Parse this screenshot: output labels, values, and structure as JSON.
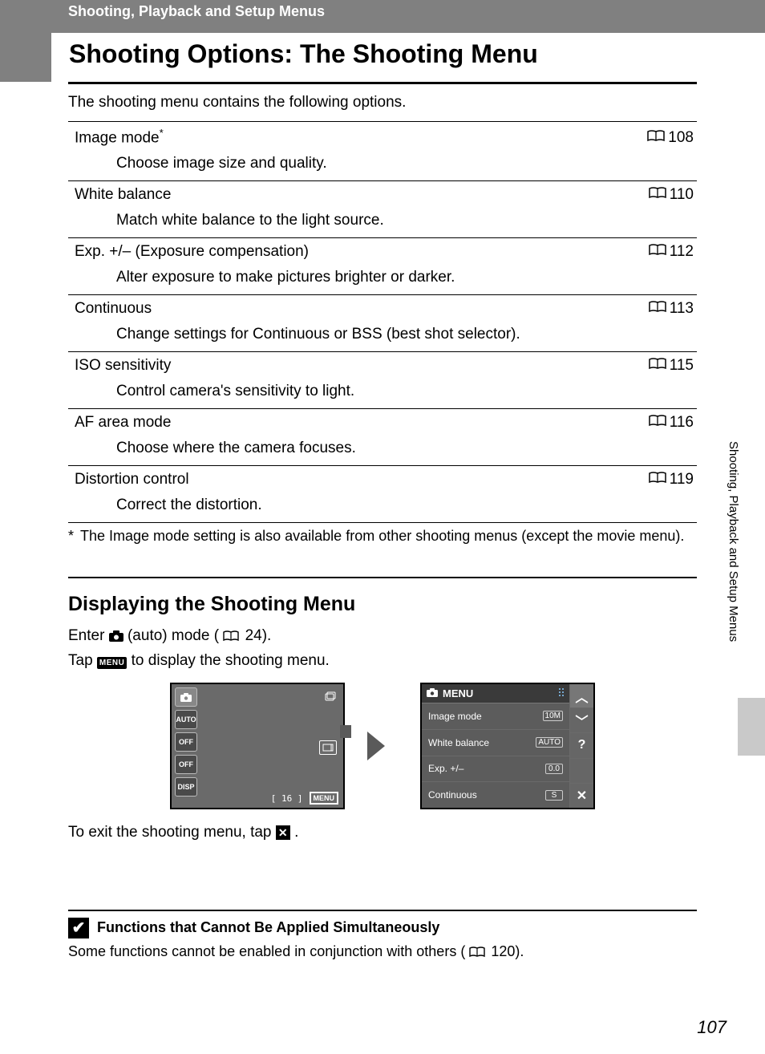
{
  "header": {
    "breadcrumb": "Shooting, Playback and Setup Menus",
    "title": "Shooting Options: The Shooting Menu"
  },
  "intro": "The shooting menu contains the following options.",
  "options": [
    {
      "name": "Image mode",
      "sup": "*",
      "page": "108",
      "desc": "Choose image size and quality."
    },
    {
      "name": "White balance",
      "sup": "",
      "page": "110",
      "desc": "Match white balance to the light source."
    },
    {
      "name": "Exp. +/– (Exposure compensation)",
      "sup": "",
      "page": "112",
      "desc": "Alter exposure to make pictures brighter or darker."
    },
    {
      "name": "Continuous",
      "sup": "",
      "page": "113",
      "desc": "Change settings for Continuous or BSS (best shot selector)."
    },
    {
      "name": "ISO sensitivity",
      "sup": "",
      "page": "115",
      "desc": "Control camera's sensitivity to light."
    },
    {
      "name": "AF area mode",
      "sup": "",
      "page": "116",
      "desc": "Choose where the camera focuses."
    },
    {
      "name": "Distortion control",
      "sup": "",
      "page": "119",
      "desc": "Correct the distortion."
    }
  ],
  "footnote": {
    "mark": "*",
    "text": "The Image mode setting is also available from other shooting menus (except the movie menu)."
  },
  "section2": {
    "title": "Displaying the Shooting Menu",
    "line1a": "Enter ",
    "line1b": " (auto) mode (",
    "line1_page": "24",
    "line1c": ").",
    "line2a": "Tap ",
    "line2_chip": "MENU",
    "line2b": " to display the shooting menu.",
    "exit_a": "To exit the shooting menu, tap ",
    "exit_b": "."
  },
  "lcd1": {
    "left_icons": [
      "📷",
      "AUTO",
      "OFF",
      "OFF",
      "DISP"
    ],
    "counter": "[   16 ]",
    "menu": "MENU"
  },
  "lcd2": {
    "header": "MENU",
    "rows": [
      {
        "label": "Image mode",
        "val": "10M"
      },
      {
        "label": "White balance",
        "val": "AUTO"
      },
      {
        "label": "Exp. +/–",
        "val": "0.0"
      },
      {
        "label": "Continuous",
        "val": "S"
      }
    ],
    "side": [
      "︿",
      "﹀",
      "?",
      "",
      "✕"
    ]
  },
  "sideTab": "Shooting, Playback and Setup Menus",
  "noteBox": {
    "title": "Functions that Cannot Be Applied Simultaneously",
    "body_a": "Some functions cannot be enabled in conjunction with others (",
    "body_page": "120",
    "body_b": ")."
  },
  "pageNumber": "107"
}
